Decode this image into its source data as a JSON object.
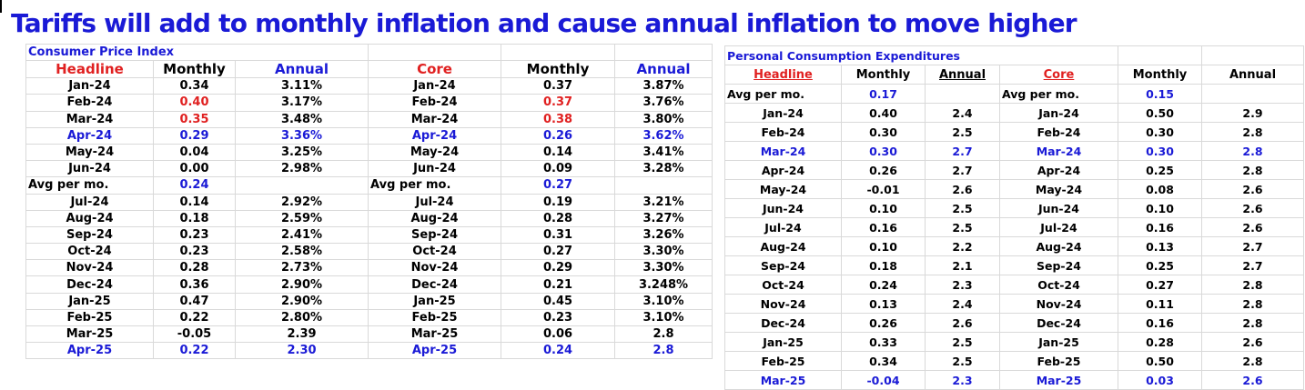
{
  "title": "Tariffs will add to monthly inflation and cause annual inflation to move higher",
  "colors": {
    "title": "#1a1ad6",
    "highlight_blue": "#1a1ad6",
    "highlight_red": "#e02020"
  },
  "cpi": {
    "section_title": "Consumer Price Index",
    "headers": {
      "headline": "Headline",
      "monthly": "Monthly",
      "annual": "Annual",
      "core": "Core",
      "core_monthly": "Monthly",
      "core_annual": "Annual"
    },
    "rows": [
      {
        "type": "data",
        "style": "",
        "h_month": "Jan-24",
        "h_monthly": "0.34",
        "h_annual": "3.11%",
        "c_month": "Jan-24",
        "c_monthly": "0.37",
        "c_annual": "3.87%",
        "red_monthly": false
      },
      {
        "type": "data",
        "style": "",
        "h_month": "Feb-24",
        "h_monthly": "0.40",
        "h_annual": "3.17%",
        "c_month": "Feb-24",
        "c_monthly": "0.37",
        "c_annual": "3.76%",
        "red_monthly": true
      },
      {
        "type": "data",
        "style": "",
        "h_month": "Mar-24",
        "h_monthly": "0.35",
        "h_annual": "3.48%",
        "c_month": "Mar-24",
        "c_monthly": "0.38",
        "c_annual": "3.80%",
        "red_monthly": true
      },
      {
        "type": "data",
        "style": "blue",
        "h_month": "Apr-24",
        "h_monthly": "0.29",
        "h_annual": "3.36%",
        "c_month": "Apr-24",
        "c_monthly": "0.26",
        "c_annual": "3.62%",
        "red_monthly": false
      },
      {
        "type": "data",
        "style": "",
        "h_month": "May-24",
        "h_monthly": "0.04",
        "h_annual": "3.25%",
        "c_month": "May-24",
        "c_monthly": "0.14",
        "c_annual": "3.41%",
        "red_monthly": false
      },
      {
        "type": "data",
        "style": "",
        "h_month": "Jun-24",
        "h_monthly": "0.00",
        "h_annual": "2.98%",
        "c_month": "Jun-24",
        "c_monthly": "0.09",
        "c_annual": "3.28%",
        "red_monthly": false
      },
      {
        "type": "avg",
        "h_label": "Avg per mo.",
        "h_value": "0.24",
        "c_label": "Avg per mo.",
        "c_value": "0.27"
      },
      {
        "type": "data",
        "style": "",
        "h_month": "Jul-24",
        "h_monthly": "0.14",
        "h_annual": "2.92%",
        "c_month": "Jul-24",
        "c_monthly": "0.19",
        "c_annual": "3.21%",
        "red_monthly": false
      },
      {
        "type": "data",
        "style": "",
        "h_month": "Aug-24",
        "h_monthly": "0.18",
        "h_annual": "2.59%",
        "c_month": "Aug-24",
        "c_monthly": "0.28",
        "c_annual": "3.27%",
        "red_monthly": false
      },
      {
        "type": "data",
        "style": "",
        "h_month": "Sep-24",
        "h_monthly": "0.23",
        "h_annual": "2.41%",
        "c_month": "Sep-24",
        "c_monthly": "0.31",
        "c_annual": "3.26%",
        "red_monthly": false
      },
      {
        "type": "data",
        "style": "",
        "h_month": "Oct-24",
        "h_monthly": "0.23",
        "h_annual": "2.58%",
        "c_month": "Oct-24",
        "c_monthly": "0.27",
        "c_annual": "3.30%",
        "red_monthly": false
      },
      {
        "type": "data",
        "style": "",
        "h_month": "Nov-24",
        "h_monthly": "0.28",
        "h_annual": "2.73%",
        "c_month": "Nov-24",
        "c_monthly": "0.29",
        "c_annual": "3.30%",
        "red_monthly": false
      },
      {
        "type": "data",
        "style": "",
        "h_month": "Dec-24",
        "h_monthly": "0.36",
        "h_annual": "2.90%",
        "c_month": "Dec-24",
        "c_monthly": "0.21",
        "c_annual": "3.248%",
        "red_monthly": false
      },
      {
        "type": "data",
        "style": "",
        "h_month": "Jan-25",
        "h_monthly": "0.47",
        "h_annual": "2.90%",
        "c_month": "Jan-25",
        "c_monthly": "0.45",
        "c_annual": "3.10%",
        "red_monthly": false
      },
      {
        "type": "data",
        "style": "",
        "h_month": "Feb-25",
        "h_monthly": "0.22",
        "h_annual": "2.80%",
        "c_month": "Feb-25",
        "c_monthly": "0.23",
        "c_annual": "3.10%",
        "red_monthly": false
      },
      {
        "type": "data",
        "style": "",
        "h_month": "Mar-25",
        "h_monthly": "-0.05",
        "h_annual": "2.39",
        "c_month": "Mar-25",
        "c_monthly": "0.06",
        "c_annual": "2.8",
        "red_monthly": false
      },
      {
        "type": "data",
        "style": "blue",
        "h_month": "Apr-25",
        "h_monthly": "0.22",
        "h_annual": "2.30",
        "c_month": "Apr-25",
        "c_monthly": "0.24",
        "c_annual": "2.8",
        "red_monthly": false
      }
    ]
  },
  "pce": {
    "section_title": "Personal Consumption Expenditures",
    "headers": {
      "headline": "Headline",
      "monthly": "Monthly",
      "annual": "Annual",
      "core": "Core",
      "core_monthly": "Monthly",
      "core_annual": "Annual"
    },
    "rows": [
      {
        "type": "avg",
        "h_label": "Avg per mo.",
        "h_value": "0.17",
        "c_label": "Avg per mo.",
        "c_value": "0.15"
      },
      {
        "type": "data",
        "style": "",
        "h_month": "Jan-24",
        "h_monthly": "0.40",
        "h_annual": "2.4",
        "c_month": "Jan-24",
        "c_monthly": "0.50",
        "c_annual": "2.9"
      },
      {
        "type": "data",
        "style": "",
        "h_month": "Feb-24",
        "h_monthly": "0.30",
        "h_annual": "2.5",
        "c_month": "Feb-24",
        "c_monthly": "0.30",
        "c_annual": "2.8"
      },
      {
        "type": "data",
        "style": "blue",
        "h_month": "Mar-24",
        "h_monthly": "0.30",
        "h_annual": "2.7",
        "c_month": "Mar-24",
        "c_monthly": "0.30",
        "c_annual": "2.8"
      },
      {
        "type": "data",
        "style": "",
        "h_month": "Apr-24",
        "h_monthly": "0.26",
        "h_annual": "2.7",
        "c_month": "Apr-24",
        "c_monthly": "0.25",
        "c_annual": "2.8"
      },
      {
        "type": "data",
        "style": "",
        "h_month": "May-24",
        "h_monthly": "-0.01",
        "h_annual": "2.6",
        "c_month": "May-24",
        "c_monthly": "0.08",
        "c_annual": "2.6"
      },
      {
        "type": "data",
        "style": "",
        "h_month": "Jun-24",
        "h_monthly": "0.10",
        "h_annual": "2.5",
        "c_month": "Jun-24",
        "c_monthly": "0.10",
        "c_annual": "2.6"
      },
      {
        "type": "data",
        "style": "",
        "h_month": "Jul-24",
        "h_monthly": "0.16",
        "h_annual": "2.5",
        "c_month": "Jul-24",
        "c_monthly": "0.16",
        "c_annual": "2.6"
      },
      {
        "type": "data",
        "style": "",
        "h_month": "Aug-24",
        "h_monthly": "0.10",
        "h_annual": "2.2",
        "c_month": "Aug-24",
        "c_monthly": "0.13",
        "c_annual": "2.7"
      },
      {
        "type": "data",
        "style": "",
        "h_month": "Sep-24",
        "h_monthly": "0.18",
        "h_annual": "2.1",
        "c_month": "Sep-24",
        "c_monthly": "0.25",
        "c_annual": "2.7"
      },
      {
        "type": "data",
        "style": "",
        "h_month": "Oct-24",
        "h_monthly": "0.24",
        "h_annual": "2.3",
        "c_month": "Oct-24",
        "c_monthly": "0.27",
        "c_annual": "2.8"
      },
      {
        "type": "data",
        "style": "",
        "h_month": "Nov-24",
        "h_monthly": "0.13",
        "h_annual": "2.4",
        "c_month": "Nov-24",
        "c_monthly": "0.11",
        "c_annual": "2.8"
      },
      {
        "type": "data",
        "style": "",
        "h_month": "Dec-24",
        "h_monthly": "0.26",
        "h_annual": "2.6",
        "c_month": "Dec-24",
        "c_monthly": "0.16",
        "c_annual": "2.8"
      },
      {
        "type": "data",
        "style": "",
        "h_month": "Jan-25",
        "h_monthly": "0.33",
        "h_annual": "2.5",
        "c_month": "Jan-25",
        "c_monthly": "0.28",
        "c_annual": "2.6"
      },
      {
        "type": "data",
        "style": "",
        "h_month": "Feb-25",
        "h_monthly": "0.34",
        "h_annual": "2.5",
        "c_month": "Feb-25",
        "c_monthly": "0.50",
        "c_annual": "2.8"
      },
      {
        "type": "data",
        "style": "blue",
        "h_month": "Mar-25",
        "h_monthly": "-0.04",
        "h_annual": "2.3",
        "c_month": "Mar-25",
        "c_monthly": "0.03",
        "c_annual": "2.6"
      }
    ]
  }
}
